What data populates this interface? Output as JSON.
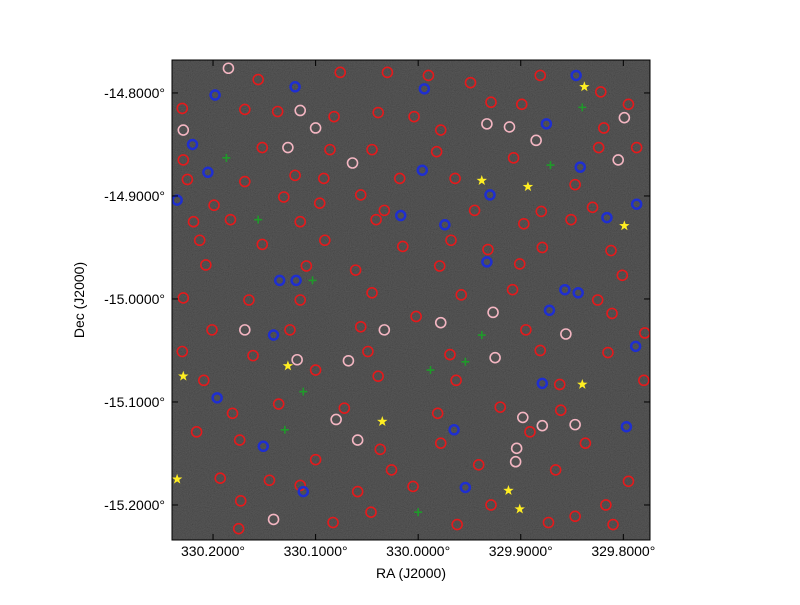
{
  "chart_data": {
    "type": "scatter",
    "xlabel": "RA (J2000)",
    "ylabel": "Dec (J2000)",
    "xlim": [
      330.24,
      329.774
    ],
    "ylim": [
      -15.234,
      -14.768
    ],
    "xticks": [
      {
        "value": 330.2,
        "label": "330.2000°"
      },
      {
        "value": 330.1,
        "label": "330.1000°"
      },
      {
        "value": 330.0,
        "label": "330.0000°"
      },
      {
        "value": 329.9,
        "label": "329.9000°"
      },
      {
        "value": 329.8,
        "label": "329.8000°"
      }
    ],
    "yticks": [
      {
        "value": -14.8,
        "label": "-14.8000°"
      },
      {
        "value": -14.9,
        "label": "-14.9000°"
      },
      {
        "value": -15.0,
        "label": "-15.0000°"
      },
      {
        "value": -15.1,
        "label": "-15.1000°"
      },
      {
        "value": -15.2,
        "label": "-15.2000°"
      }
    ],
    "background": "#262626",
    "series": [
      {
        "color": "#e41a1c",
        "marker": "circle",
        "x": [
          330.156,
          330.076,
          330.03,
          329.99,
          329.949,
          329.881,
          329.822,
          329.795,
          330.23,
          330.169,
          330.137,
          330.082,
          330.039,
          330.004,
          329.978,
          329.929,
          329.899,
          329.819,
          329.787,
          330.229,
          330.152,
          330.086,
          330.045,
          329.982,
          329.907,
          329.824,
          330.225,
          330.169,
          330.12,
          330.092,
          330.018,
          329.964,
          329.847,
          330.199,
          330.131,
          330.096,
          330.056,
          330.033,
          329.945,
          329.88,
          329.83,
          330.219,
          330.183,
          330.115,
          330.041,
          329.968,
          329.897,
          329.851,
          329.812,
          330.213,
          330.152,
          330.091,
          330.015,
          329.932,
          329.879,
          330.207,
          330.109,
          330.061,
          329.979,
          329.901,
          329.801,
          330.229,
          330.165,
          330.115,
          330.045,
          329.958,
          329.908,
          329.825,
          330.201,
          330.125,
          330.056,
          330.002,
          329.895,
          329.811,
          329.779,
          330.23,
          330.161,
          330.049,
          329.969,
          329.881,
          329.815,
          330.209,
          330.1,
          330.039,
          329.963,
          329.862,
          329.78,
          330.181,
          330.136,
          330.072,
          329.981,
          329.92,
          329.861,
          330.216,
          330.174,
          330.037,
          329.978,
          329.891,
          329.837,
          330.193,
          330.145,
          330.1,
          330.026,
          329.941,
          329.866,
          329.795,
          330.173,
          330.115,
          330.059,
          330.005,
          329.929,
          329.817,
          330.175,
          330.083,
          330.046,
          329.962,
          329.873,
          329.847,
          329.81
        ],
        "y": [
          -14.787,
          -14.78,
          -14.78,
          -14.783,
          -14.79,
          -14.783,
          -14.799,
          -14.811,
          -14.815,
          -14.816,
          -14.818,
          -14.823,
          -14.819,
          -14.823,
          -14.836,
          -14.809,
          -14.811,
          -14.834,
          -14.853,
          -14.865,
          -14.853,
          -14.855,
          -14.855,
          -14.857,
          -14.863,
          -14.853,
          -14.884,
          -14.886,
          -14.88,
          -14.883,
          -14.883,
          -14.883,
          -14.889,
          -14.909,
          -14.901,
          -14.907,
          -14.899,
          -14.914,
          -14.914,
          -14.915,
          -14.911,
          -14.925,
          -14.923,
          -14.925,
          -14.923,
          -14.943,
          -14.927,
          -14.923,
          -14.953,
          -14.943,
          -14.947,
          -14.943,
          -14.949,
          -14.952,
          -14.95,
          -14.967,
          -14.968,
          -14.972,
          -14.968,
          -14.966,
          -14.977,
          -14.999,
          -15.001,
          -15.001,
          -14.994,
          -14.996,
          -14.991,
          -15.001,
          -15.03,
          -15.03,
          -15.027,
          -15.017,
          -15.03,
          -15.014,
          -15.033,
          -15.051,
          -15.055,
          -15.051,
          -15.054,
          -15.05,
          -15.052,
          -15.079,
          -15.069,
          -15.075,
          -15.079,
          -15.083,
          -15.079,
          -15.111,
          -15.102,
          -15.106,
          -15.111,
          -15.105,
          -15.108,
          -15.129,
          -15.137,
          -15.146,
          -15.14,
          -15.129,
          -15.14,
          -15.174,
          -15.176,
          -15.156,
          -15.166,
          -15.161,
          -15.166,
          -15.177,
          -15.196,
          -15.181,
          -15.187,
          -15.182,
          -15.2,
          -15.2,
          -15.223,
          -15.217,
          -15.207,
          -15.219,
          -15.217,
          -15.211,
          -15.219
        ]
      },
      {
        "color": "#f4b6c2",
        "marker": "circle",
        "x": [
          330.185,
          330.115,
          330.1,
          330.127,
          329.933,
          329.911,
          329.885,
          329.799,
          330.064,
          329.978,
          330.033,
          330.118,
          330.068,
          329.925,
          329.898,
          329.927,
          329.856,
          330.08,
          330.059,
          329.879,
          329.905,
          330.141,
          329.904,
          330.169,
          329.847,
          330.229,
          329.805
        ],
        "y": [
          -14.776,
          -14.817,
          -14.834,
          -14.853,
          -14.83,
          -14.833,
          -14.846,
          -14.824,
          -14.868,
          -15.023,
          -15.03,
          -15.059,
          -15.06,
          -15.057,
          -15.115,
          -15.013,
          -15.034,
          -15.117,
          -15.137,
          -15.123,
          -15.158,
          -15.214,
          -15.145,
          -15.03,
          -15.122,
          -14.836,
          -14.865
        ]
      },
      {
        "color": "#1f2fd0",
        "marker": "dot",
        "x": [
          330.198,
          330.12,
          329.994,
          329.875,
          330.22,
          330.205,
          329.996,
          329.842,
          329.93,
          330.017,
          329.787,
          329.974,
          329.816,
          329.933,
          330.135,
          330.119,
          329.857,
          329.844,
          329.872,
          330.141,
          329.788,
          329.879,
          330.196,
          330.151,
          329.965,
          329.797,
          330.112,
          329.954,
          329.846,
          330.235
        ],
        "y": [
          -14.802,
          -14.794,
          -14.796,
          -14.83,
          -14.85,
          -14.877,
          -14.875,
          -14.872,
          -14.899,
          -14.919,
          -14.908,
          -14.928,
          -14.921,
          -14.964,
          -14.982,
          -14.982,
          -14.991,
          -14.994,
          -15.011,
          -15.035,
          -15.046,
          -15.082,
          -15.096,
          -15.143,
          -15.127,
          -15.124,
          -15.187,
          -15.183,
          -14.783,
          -14.904
        ]
      },
      {
        "color": "#1f9a2a",
        "marker": "cross",
        "x": [
          330.187,
          329.84,
          330.156,
          329.871,
          330.103,
          329.938,
          329.988,
          329.954,
          330.112,
          330.13,
          330.0
        ],
        "y": [
          -14.863,
          -14.814,
          -14.923,
          -14.87,
          -14.982,
          -15.035,
          -15.069,
          -15.061,
          -15.09,
          -15.127,
          -15.207
        ]
      },
      {
        "color": "#ffee22",
        "marker": "star",
        "x": [
          329.838,
          329.938,
          329.893,
          329.799,
          330.127,
          330.229,
          329.84,
          330.035,
          330.235,
          329.912,
          329.901
        ],
        "y": [
          -14.794,
          -14.885,
          -14.891,
          -14.929,
          -15.065,
          -15.075,
          -15.083,
          -15.119,
          -15.175,
          -15.186,
          -15.204
        ]
      }
    ]
  }
}
